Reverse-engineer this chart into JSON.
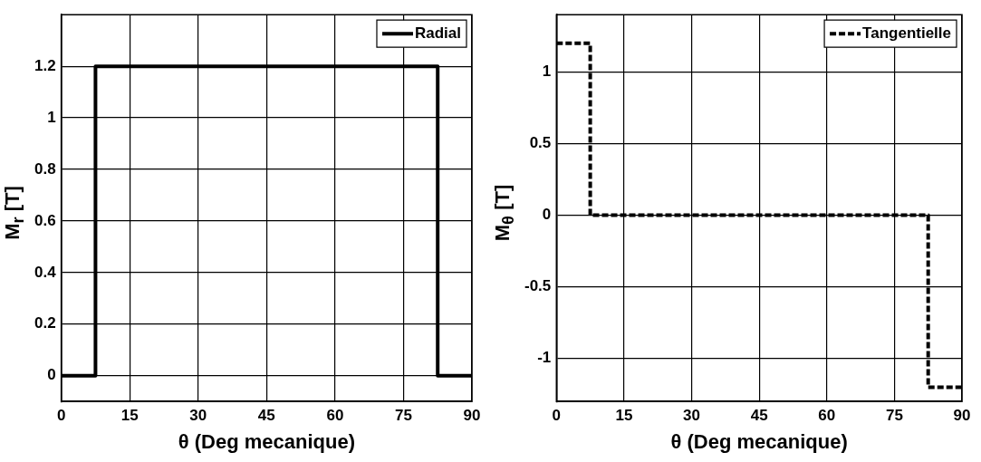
{
  "chart_data": [
    {
      "type": "line",
      "xlabel": "θ (Deg mecanique)",
      "ylabel": "M$_{r}$ [T]",
      "series": [
        {
          "name": "Radial",
          "color": "#000000",
          "x": [
            0,
            7.5,
            7.5,
            82.5,
            82.5,
            90
          ],
          "values": [
            0,
            0,
            1.2,
            1.2,
            0,
            0
          ]
        }
      ],
      "xlim": [
        0,
        90
      ],
      "xticks": [
        0,
        15,
        30,
        45,
        60,
        75,
        90
      ],
      "ylim": [
        -0.1,
        1.4
      ],
      "yticks": [
        0,
        0.2,
        0.4,
        0.6,
        0.8,
        1,
        1.2
      ],
      "grid": true,
      "legend": "top right",
      "line_style": "solid"
    },
    {
      "type": "line",
      "xlabel": "θ (Deg mecanique)",
      "ylabel": "M$_{θ}$ [T]",
      "series": [
        {
          "name": "Tangentielle",
          "color": "#000000",
          "x": [
            0,
            7.5,
            7.5,
            82.5,
            82.5,
            90
          ],
          "values": [
            1.2,
            1.2,
            0,
            0,
            -1.2,
            -1.2
          ]
        }
      ],
      "xlim": [
        0,
        90
      ],
      "xticks": [
        0,
        15,
        30,
        45,
        60,
        75,
        90
      ],
      "ylim": [
        -1.3,
        1.4
      ],
      "yticks": [
        -1,
        -0.5,
        0,
        0.5,
        1
      ],
      "grid": true,
      "legend": "top right",
      "line_style": "dashed"
    }
  ]
}
